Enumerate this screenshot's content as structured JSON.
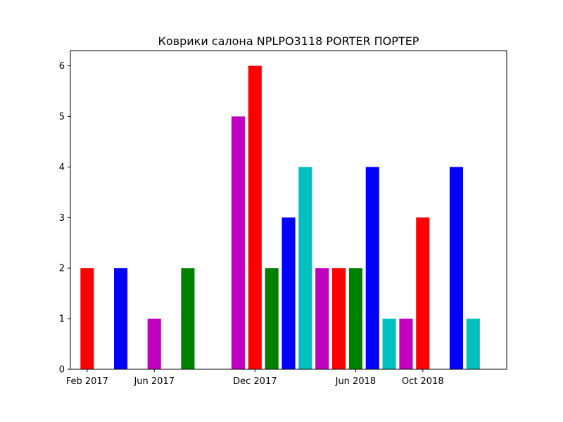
{
  "chart_data": {
    "type": "bar",
    "title": "Коврики салона NPLPO3118 PORTER ПОРТЕР",
    "xlabel": "",
    "ylabel": "",
    "ylim": [
      0,
      6.3
    ],
    "yticks": [
      0,
      1,
      2,
      3,
      4,
      5,
      6
    ],
    "xlim": [
      "2017-01",
      "2019-03"
    ],
    "xticks": [
      {
        "date": "2017-02",
        "label": "Feb 2017"
      },
      {
        "date": "2017-06",
        "label": "Jun 2017"
      },
      {
        "date": "2017-12",
        "label": "Dec 2017"
      },
      {
        "date": "2018-06",
        "label": "Jun 2018"
      },
      {
        "date": "2018-10",
        "label": "Oct 2018"
      }
    ],
    "grid": false,
    "bars": [
      {
        "month": "2017-02",
        "value": 2,
        "color": "#ff0000"
      },
      {
        "month": "2017-04",
        "value": 2,
        "color": "#0000ff"
      },
      {
        "month": "2017-06",
        "value": 1,
        "color": "#bf00bf"
      },
      {
        "month": "2017-08",
        "value": 2,
        "color": "#008000"
      },
      {
        "month": "2017-11",
        "value": 5,
        "color": "#bf00bf"
      },
      {
        "month": "2017-12",
        "value": 6,
        "color": "#ff0000"
      },
      {
        "month": "2018-01",
        "value": 2,
        "color": "#008000"
      },
      {
        "month": "2018-02",
        "value": 3,
        "color": "#0000ff"
      },
      {
        "month": "2018-03",
        "value": 4,
        "color": "#00bfbf"
      },
      {
        "month": "2018-04",
        "value": 2,
        "color": "#bf00bf"
      },
      {
        "month": "2018-05",
        "value": 2,
        "color": "#ff0000"
      },
      {
        "month": "2018-06",
        "value": 2,
        "color": "#008000"
      },
      {
        "month": "2018-07",
        "value": 4,
        "color": "#0000ff"
      },
      {
        "month": "2018-08",
        "value": 1,
        "color": "#00bfbf"
      },
      {
        "month": "2018-09",
        "value": 1,
        "color": "#bf00bf"
      },
      {
        "month": "2018-10",
        "value": 3,
        "color": "#ff0000"
      },
      {
        "month": "2018-12",
        "value": 4,
        "color": "#0000ff"
      },
      {
        "month": "2019-01",
        "value": 1,
        "color": "#00bfbf"
      }
    ]
  }
}
